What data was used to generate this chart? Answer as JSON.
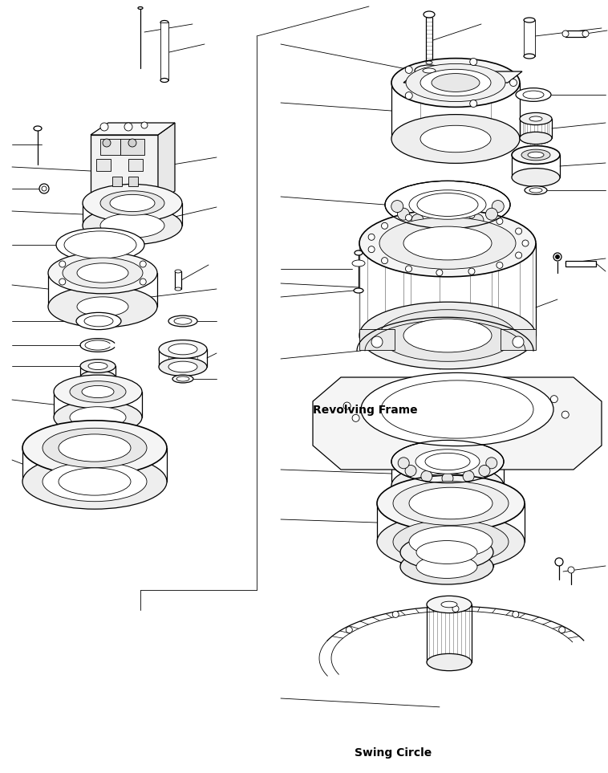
{
  "background_color": "#ffffff",
  "line_color": "#000000",
  "label_revolving_frame": "Revolving Frame",
  "label_swing_circle": "Swing Circle",
  "lw_thin": 0.6,
  "lw_med": 0.9,
  "lw_thick": 1.2
}
